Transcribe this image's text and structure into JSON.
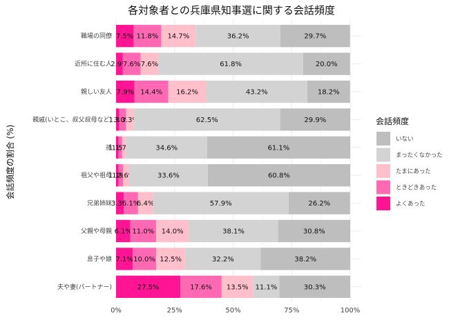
{
  "chart_data": {
    "type": "bar",
    "orientation": "horizontal-stacked",
    "title": "各対象者との兵庫県知事選に関する会話頻度",
    "ylabel": "会話頻度の割合 (%)",
    "xlabel": "",
    "xlim": [
      0,
      100
    ],
    "x_ticks": [
      "0%",
      "25%",
      "50%",
      "75%",
      "100%"
    ],
    "grid": true,
    "legend_title": "会話頻度",
    "legend_position": "right",
    "categories": [
      "職場の同僚",
      "近所に住む人",
      "親しい友人",
      "親戚(いとこ、叔父叔母など)",
      "孫",
      "祖父や祖母",
      "兄弟姉妹",
      "父親や母親",
      "息子や娘",
      "夫や妻(パートナー)"
    ],
    "series": [
      {
        "name": "よくあった",
        "color": "#FF1493",
        "values": [
          7.5,
          2.9,
          7.9,
          1.3,
          1.1,
          1.1,
          3.3,
          6.1,
          7.1,
          27.5
        ],
        "labels": [
          "7.5%",
          "2.9%",
          "7.9%",
          "1.3%",
          "1.1%",
          "1.1%",
          "3.3%",
          "6.1%",
          "7.1%",
          "27.5%"
        ]
      },
      {
        "name": "ときどきあった",
        "color": "#FF69B4",
        "values": [
          11.8,
          7.6,
          14.4,
          3.0,
          1.5,
          1.9,
          6.1,
          11.0,
          10.0,
          17.6
        ],
        "labels": [
          "11.8%",
          "7.6%",
          "14.4%",
          "3.0%",
          "1.5%",
          "1.9%",
          "6.1%",
          "11.0%",
          "10.0%",
          "17.6%"
        ]
      },
      {
        "name": "たまにあった",
        "color": "#FFC0CB",
        "values": [
          14.7,
          7.6,
          16.2,
          3.3,
          1.7,
          2.6,
          6.4,
          14.0,
          12.5,
          13.5
        ],
        "labels": [
          "14.7%",
          "7.6%",
          "16.2%",
          "3.3%",
          "1.7%",
          "2.6%",
          "6.4%",
          "14.0%",
          "12.5%",
          "13.5%"
        ]
      },
      {
        "name": "まったくなかった",
        "color": "#D3D3D3",
        "values": [
          36.2,
          61.8,
          43.2,
          62.5,
          34.6,
          33.6,
          57.9,
          38.1,
          32.2,
          11.1
        ],
        "labels": [
          "36.2%",
          "61.8%",
          "43.2%",
          "62.5%",
          "34.6%",
          "33.6%",
          "57.9%",
          "38.1%",
          "32.2%",
          "11.1%"
        ]
      },
      {
        "name": "いない",
        "color": "#BEBEBE",
        "values": [
          29.7,
          20.0,
          18.2,
          29.9,
          61.1,
          60.8,
          26.2,
          30.8,
          38.2,
          30.3
        ],
        "labels": [
          "29.7%",
          "20.0%",
          "18.2%",
          "29.9%",
          "61.1%",
          "60.8%",
          "26.2%",
          "30.8%",
          "38.2%",
          "30.3%"
        ]
      }
    ],
    "legend_order": [
      "いない",
      "まったくなかった",
      "たまにあった",
      "ときどきあった",
      "よくあった"
    ]
  }
}
